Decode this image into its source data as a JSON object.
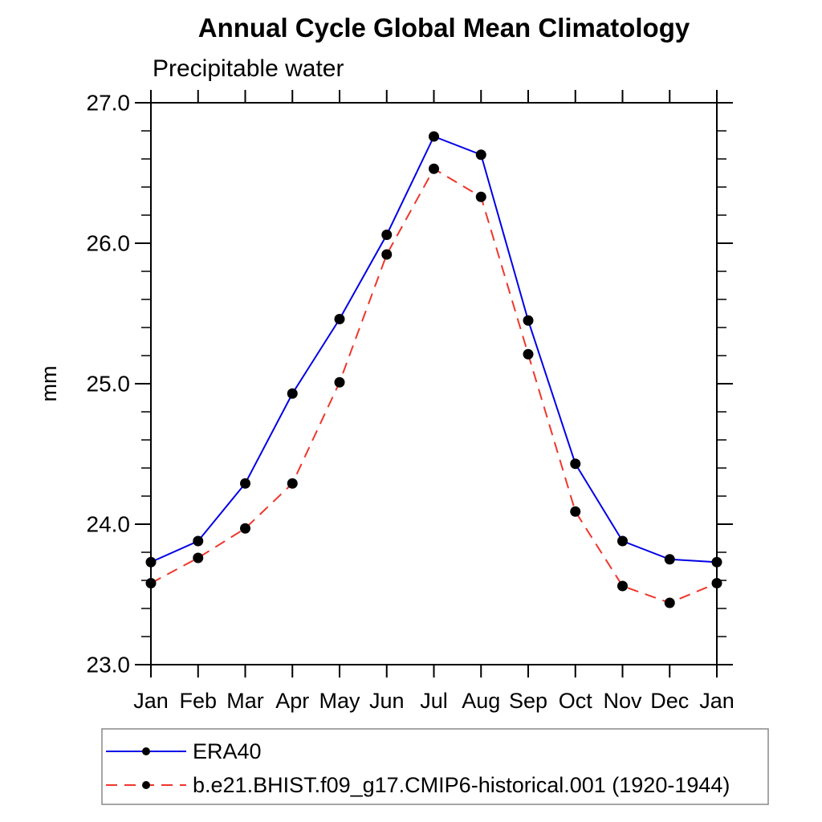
{
  "chart_data": {
    "type": "line",
    "title": "Annual Cycle Global Mean Climatology",
    "subtitle": "Precipitable water",
    "ylabel": "mm",
    "xlabel": "",
    "categories": [
      "Jan",
      "Feb",
      "Mar",
      "Apr",
      "May",
      "Jun",
      "Jul",
      "Aug",
      "Sep",
      "Oct",
      "Nov",
      "Dec",
      "Jan"
    ],
    "ylim": [
      23.0,
      27.0
    ],
    "yticks": [
      23.0,
      24.0,
      25.0,
      26.0,
      27.0
    ],
    "ytick_labels": [
      "23.0",
      "24.0",
      "25.0",
      "26.0",
      "27.0"
    ],
    "y_minor_step": 0.2,
    "grid": false,
    "legend_position": "bottom-left-box",
    "series": [
      {
        "name": "ERA40",
        "color": "#0000e8",
        "line_style": "solid",
        "marker": "filled-circle",
        "marker_color": "#000000",
        "values": [
          23.73,
          23.88,
          24.29,
          24.93,
          25.46,
          26.06,
          26.76,
          26.63,
          25.45,
          24.43,
          23.88,
          23.75,
          23.73
        ]
      },
      {
        "name": "b.e21.BHIST.f09_g17.CMIP6-historical.001 (1920-1944)",
        "color": "#ef362c",
        "line_style": "dashed",
        "marker": "filled-circle",
        "marker_color": "#000000",
        "values": [
          23.58,
          23.76,
          23.97,
          24.29,
          25.01,
          25.92,
          26.53,
          26.33,
          25.21,
          24.09,
          23.56,
          23.44,
          23.58
        ]
      }
    ]
  },
  "colors": {
    "background": "#ffffff",
    "axis": "#000000",
    "text": "#000000",
    "era40_line": "#0000e8",
    "model_line": "#ef362c",
    "marker": "#000000",
    "legend_border": "#888888"
  }
}
